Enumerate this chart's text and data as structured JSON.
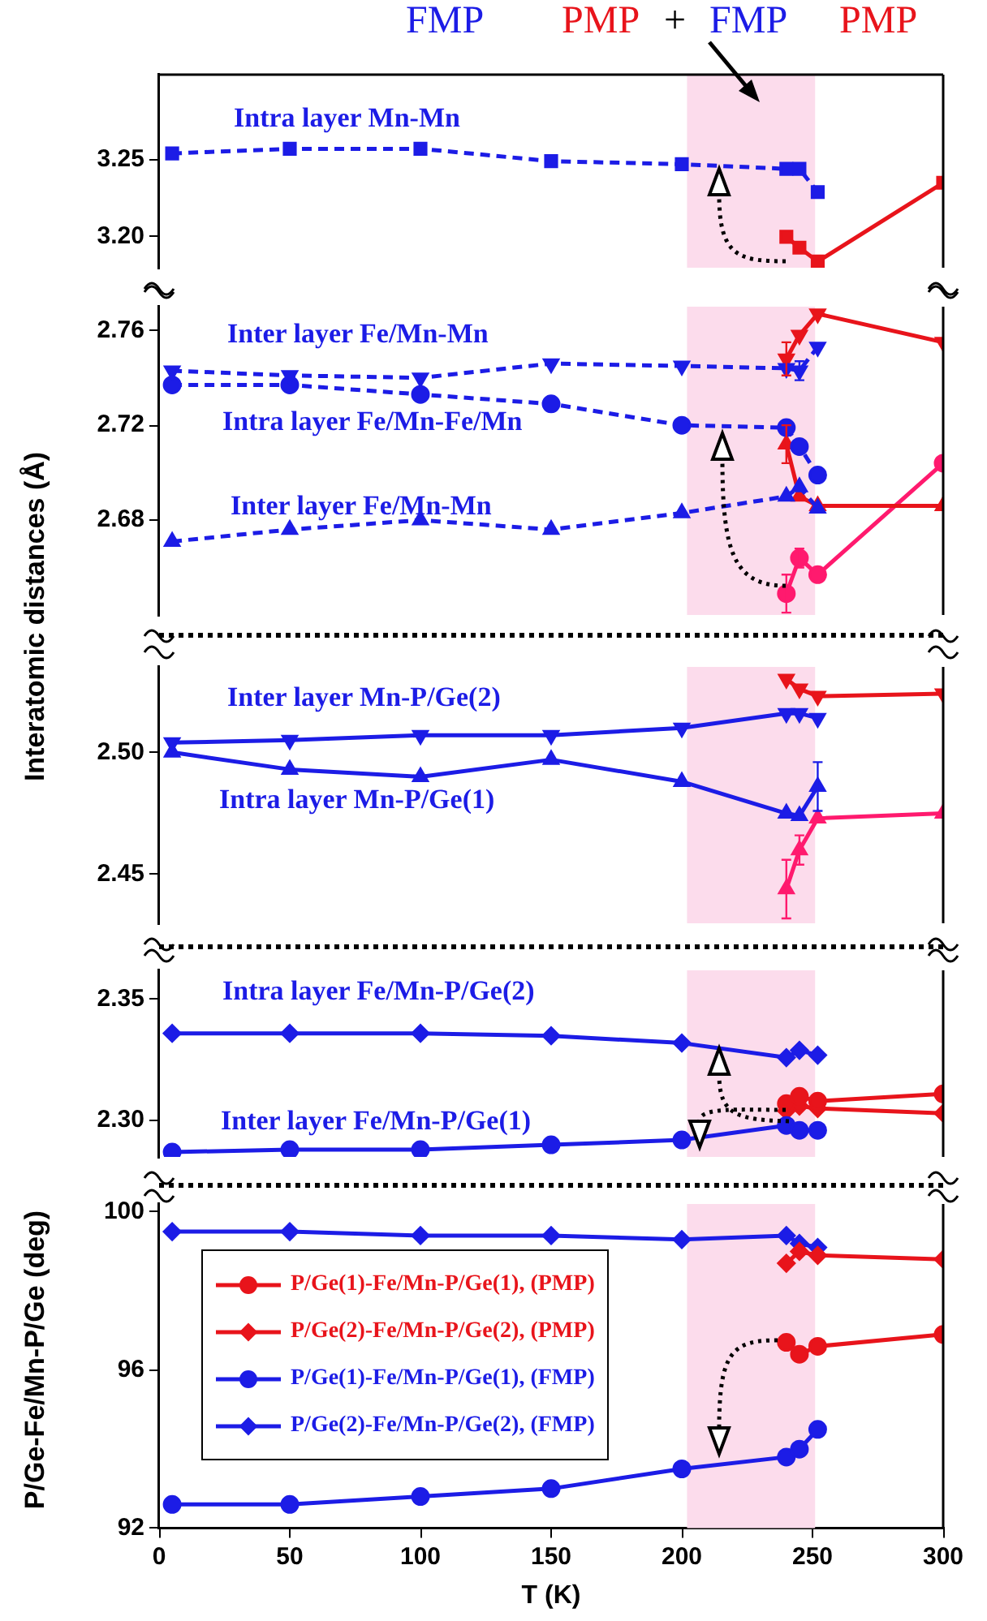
{
  "chart_data": [
    {
      "type": "line",
      "xlim": [
        0,
        300
      ],
      "ylim": [
        3.18,
        3.305
      ],
      "yticks": [
        {
          "value": 3.2,
          "label": "3.20"
        },
        {
          "value": 3.25,
          "label": "3.25"
        }
      ],
      "tick_labels": "y",
      "grid": false,
      "bands": [
        {
          "axis": "x",
          "from": 202,
          "to": 251,
          "color": "#fcdcec"
        }
      ],
      "annotations": [
        "FMP",
        "PMP",
        "+",
        "FMP",
        "PMP",
        "Intra layer Mn-Mn"
      ],
      "series": [
        {
          "color": "#1c1ce6",
          "marker": "square",
          "line_style": "dashed",
          "x": [
            5,
            50,
            100,
            150,
            200,
            240,
            245,
            252
          ],
          "values": [
            3.254,
            3.257,
            3.257,
            3.249,
            3.247,
            3.244,
            3.244,
            3.229
          ]
        },
        {
          "color": "#e8141b",
          "marker": "square",
          "line_style": "solid",
          "x": [
            240,
            245,
            252,
            300
          ],
          "values": [
            3.2,
            3.193,
            3.184,
            3.235
          ]
        }
      ]
    },
    {
      "type": "line",
      "xlim": [
        0,
        300
      ],
      "ylim": [
        2.64,
        2.77
      ],
      "yticks": [
        {
          "value": 2.68,
          "label": "2.68"
        },
        {
          "value": 2.72,
          "label": "2.72"
        },
        {
          "value": 2.76,
          "label": "2.76"
        }
      ],
      "tick_labels": "y",
      "grid": false,
      "bands": [
        {
          "axis": "x",
          "from": 202,
          "to": 251,
          "color": "#fcdcec"
        }
      ],
      "annotations": [
        "Inter layer Fe/Mn-Mn",
        "Intra layer Fe/Mn-Fe/Mn",
        "Inter layer Fe/Mn-Mn"
      ],
      "series": [
        {
          "color": "#1c1ce6",
          "marker": "triangle-down",
          "line_style": "dashed",
          "x": [
            5,
            50,
            100,
            150,
            200,
            240,
            245,
            252
          ],
          "values": [
            2.743,
            2.741,
            2.74,
            2.746,
            2.745,
            2.744,
            2.743,
            2.753
          ],
          "errors": [
            null,
            null,
            null,
            null,
            null,
            null,
            0.004,
            null
          ]
        },
        {
          "color": "#1c1ce6",
          "marker": "circle",
          "line_style": "dashed",
          "x": [
            5,
            50,
            100,
            150,
            200,
            240,
            245,
            252
          ],
          "values": [
            2.737,
            2.737,
            2.733,
            2.729,
            2.72,
            2.719,
            2.711,
            2.699
          ]
        },
        {
          "color": "#1c1ce6",
          "marker": "triangle",
          "line_style": "dashed",
          "x": [
            5,
            50,
            100,
            150,
            200,
            240,
            245,
            252
          ],
          "values": [
            2.671,
            2.676,
            2.68,
            2.676,
            2.683,
            2.69,
            2.694,
            2.685
          ]
        },
        {
          "color": "#e8141b",
          "marker": "triangle-down",
          "line_style": "solid",
          "x": [
            240,
            245,
            252,
            300
          ],
          "values": [
            2.748,
            2.758,
            2.767,
            2.755
          ],
          "errors": [
            0.007,
            null,
            null,
            null
          ]
        },
        {
          "color": "#e8141b",
          "marker": "triangle",
          "line_style": "solid",
          "x": [
            240,
            245,
            252,
            300
          ],
          "values": [
            2.712,
            2.69,
            2.686,
            2.686
          ],
          "errors": [
            0.008,
            null,
            null,
            null
          ]
        },
        {
          "color": "#ff1a6e",
          "marker": "circle",
          "line_style": "solid",
          "x": [
            240,
            245,
            252,
            300
          ],
          "values": [
            2.649,
            2.664,
            2.657,
            2.704
          ],
          "errors": [
            0.008,
            0.004,
            null,
            null
          ]
        }
      ]
    },
    {
      "type": "line",
      "xlim": [
        0,
        300
      ],
      "ylim": [
        2.43,
        2.535
      ],
      "yticks": [
        {
          "value": 2.45,
          "label": "2.45"
        },
        {
          "value": 2.5,
          "label": "2.50"
        }
      ],
      "tick_labels": "y",
      "grid": false,
      "ylabel": "Interatomic distances (Å)",
      "bands": [
        {
          "axis": "x",
          "from": 202,
          "to": 251,
          "color": "#fcdcec"
        }
      ],
      "annotations": [
        "Inter layer Mn-P/Ge(2)",
        "Intra layer Mn-P/Ge(1)"
      ],
      "series": [
        {
          "color": "#1c1ce6",
          "marker": "triangle-down",
          "line_style": "solid",
          "x": [
            5,
            50,
            100,
            150,
            200,
            240,
            245,
            252
          ],
          "values": [
            2.504,
            2.505,
            2.507,
            2.507,
            2.51,
            2.516,
            2.516,
            2.514
          ]
        },
        {
          "color": "#1c1ce6",
          "marker": "triangle",
          "line_style": "solid",
          "x": [
            5,
            50,
            100,
            150,
            200,
            240,
            245,
            252
          ],
          "values": [
            2.5,
            2.493,
            2.49,
            2.497,
            2.488,
            2.475,
            2.474,
            2.486
          ],
          "errors": [
            null,
            null,
            null,
            null,
            null,
            null,
            null,
            0.01
          ]
        },
        {
          "color": "#e8141b",
          "marker": "triangle-down",
          "line_style": "solid",
          "x": [
            240,
            245,
            252,
            300
          ],
          "values": [
            2.53,
            2.526,
            2.523,
            2.524
          ]
        },
        {
          "color": "#ff1a6e",
          "marker": "triangle",
          "line_style": "solid",
          "x": [
            240,
            245,
            252,
            300
          ],
          "values": [
            2.444,
            2.46,
            2.473,
            2.475
          ],
          "errors": [
            0.012,
            0.006,
            null,
            null
          ]
        }
      ]
    },
    {
      "type": "line",
      "xlim": [
        0,
        300
      ],
      "ylim": [
        2.285,
        2.362
      ],
      "yticks": [
        {
          "value": 2.3,
          "label": "2.30"
        },
        {
          "value": 2.35,
          "label": "2.35"
        }
      ],
      "tick_labels": "y",
      "grid": false,
      "bands": [
        {
          "axis": "x",
          "from": 202,
          "to": 251,
          "color": "#fcdcec"
        }
      ],
      "annotations": [
        "Intra layer Fe/Mn-P/Ge(2)",
        "Inter layer Fe/Mn-P/Ge(1)"
      ],
      "series": [
        {
          "color": "#1c1ce6",
          "marker": "diamond",
          "line_style": "solid",
          "x": [
            5,
            50,
            100,
            150,
            200,
            240,
            245,
            252
          ],
          "values": [
            2.336,
            2.336,
            2.336,
            2.335,
            2.332,
            2.326,
            2.329,
            2.327
          ]
        },
        {
          "color": "#1c1ce6",
          "marker": "circle",
          "line_style": "solid",
          "x": [
            5,
            50,
            100,
            150,
            200,
            240,
            245,
            252
          ],
          "values": [
            2.287,
            2.288,
            2.288,
            2.29,
            2.292,
            2.298,
            2.296,
            2.296
          ]
        },
        {
          "color": "#e8141b",
          "marker": "circle",
          "line_style": "solid",
          "x": [
            240,
            245,
            252,
            300
          ],
          "values": [
            2.307,
            2.31,
            2.308,
            2.311
          ]
        },
        {
          "color": "#e8141b",
          "marker": "diamond",
          "line_style": "solid",
          "x": [
            240,
            245,
            252,
            300
          ],
          "values": [
            2.304,
            2.306,
            2.305,
            2.303
          ]
        }
      ]
    },
    {
      "type": "line",
      "xlim": [
        0,
        300
      ],
      "ylim": [
        92,
        100.2
      ],
      "xticks": [
        0,
        50,
        100,
        150,
        200,
        250,
        300
      ],
      "yticks": [
        92,
        96,
        100
      ],
      "grid": false,
      "legend": "top left",
      "xlabel": "T (K)",
      "ylabel": "P/Ge-Fe/Mn-P/Ge (deg)",
      "bands": [
        {
          "axis": "x",
          "from": 202,
          "to": 251,
          "color": "#fcdcec"
        }
      ],
      "series": [
        {
          "name": "P/Ge(1)-Fe/Mn-P/Ge(1), (PMP)",
          "color": "#e8141b",
          "marker": "circle",
          "line_style": "solid",
          "x": [
            240,
            245,
            252,
            300
          ],
          "values": [
            96.7,
            96.4,
            96.6,
            96.9
          ]
        },
        {
          "name": "P/Ge(2)-Fe/Mn-P/Ge(2), (PMP)",
          "color": "#e8141b",
          "marker": "diamond",
          "line_style": "solid",
          "x": [
            240,
            245,
            252,
            300
          ],
          "values": [
            98.7,
            99.0,
            98.9,
            98.8
          ]
        },
        {
          "name": "P/Ge(1)-Fe/Mn-P/Ge(1), (FMP)",
          "color": "#1c1ce6",
          "marker": "circle",
          "line_style": "solid",
          "x": [
            5,
            50,
            100,
            150,
            200,
            240,
            245,
            252
          ],
          "values": [
            92.6,
            92.6,
            92.8,
            93.0,
            93.5,
            93.8,
            94.0,
            94.5
          ]
        },
        {
          "name": "P/Ge(2)-Fe/Mn-P/Ge(2), (FMP)",
          "color": "#1c1ce6",
          "marker": "diamond",
          "line_style": "solid",
          "x": [
            5,
            50,
            100,
            150,
            200,
            240,
            245,
            252
          ],
          "values": [
            99.5,
            99.5,
            99.4,
            99.4,
            99.3,
            99.4,
            99.2,
            99.1
          ]
        }
      ]
    }
  ]
}
